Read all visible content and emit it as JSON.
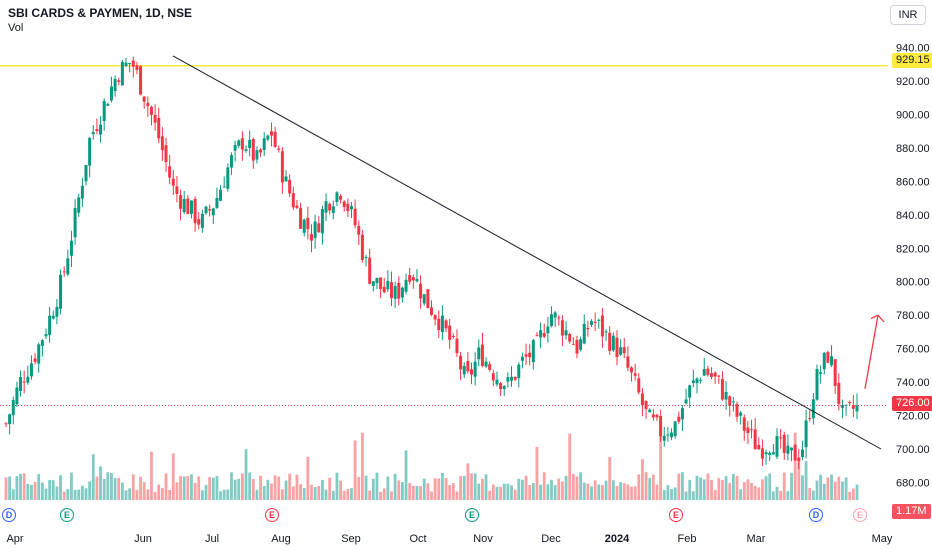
{
  "header": {
    "title": "SBI CARDS & PAYMEN, 1D, NSE",
    "vol_label": "Vol"
  },
  "currency": "INR",
  "price_tags": {
    "horizontal_line": "929.15",
    "last_price": "726.00",
    "volume": "1.17M"
  },
  "events": [
    {
      "kind": "D",
      "month_pos": "Apr"
    },
    {
      "kind": "E",
      "month_pos": "May"
    },
    {
      "kind": "E",
      "month_pos": "Jul"
    },
    {
      "kind": "E",
      "month_pos": "Oct"
    },
    {
      "kind": "E",
      "month_pos": "Jan"
    },
    {
      "kind": "D",
      "month_pos": "Mar"
    },
    {
      "kind": "E",
      "month_pos": "Mar"
    }
  ],
  "chart_data": {
    "type": "candlestick",
    "title": "SBI CARDS & PAYMEN, 1D, NSE",
    "x_tick_labels": [
      "Apr",
      "Jun",
      "Jul",
      "Aug",
      "Sep",
      "Oct",
      "Nov",
      "Dec",
      "2024",
      "Feb",
      "Mar",
      "May"
    ],
    "y_tick_labels": [
      "680.00",
      "700.00",
      "720.00",
      "740.00",
      "760.00",
      "780.00",
      "800.00",
      "820.00",
      "840.00",
      "860.00",
      "880.00",
      "900.00",
      "920.00",
      "940.00"
    ],
    "ylim": [
      670,
      948
    ],
    "price_path": [
      [
        "Apr",
        715
      ],
      [
        "Apr",
        740
      ],
      [
        "Apr",
        755
      ],
      [
        "May",
        775
      ],
      [
        "May",
        800
      ],
      [
        "May",
        840
      ],
      [
        "May",
        885
      ],
      [
        "May",
        905
      ],
      [
        "Jun",
        925
      ],
      [
        "Jun",
        932
      ],
      [
        "Jun",
        910
      ],
      [
        "Jun",
        885
      ],
      [
        "Jun",
        855
      ],
      [
        "Jul",
        845
      ],
      [
        "Jul",
        835
      ],
      [
        "Jul",
        848
      ],
      [
        "Jul",
        870
      ],
      [
        "Aug",
        885
      ],
      [
        "Aug",
        872
      ],
      [
        "Aug",
        890
      ],
      [
        "Aug",
        860
      ],
      [
        "Aug",
        840
      ],
      [
        "Sep",
        828
      ],
      [
        "Sep",
        848
      ],
      [
        "Sep",
        855
      ],
      [
        "Sep",
        835
      ],
      [
        "Sep",
        805
      ],
      [
        "Oct",
        795
      ],
      [
        "Oct",
        792
      ],
      [
        "Oct",
        808
      ],
      [
        "Oct",
        790
      ],
      [
        "Oct",
        778
      ],
      [
        "Nov",
        762
      ],
      [
        "Nov",
        740
      ],
      [
        "Nov",
        758
      ],
      [
        "Nov",
        745
      ],
      [
        "Dec",
        738
      ],
      [
        "Dec",
        752
      ],
      [
        "Dec",
        760
      ],
      [
        "Dec",
        782
      ],
      [
        "Dec",
        772
      ],
      [
        "2024",
        760
      ],
      [
        "2024",
        778
      ],
      [
        "2024",
        768
      ],
      [
        "2024",
        758
      ],
      [
        "2024",
        740
      ],
      [
        "Feb",
        718
      ],
      [
        "Feb",
        710
      ],
      [
        "Feb",
        715
      ],
      [
        "Feb",
        735
      ],
      [
        "Feb",
        748
      ],
      [
        "Mar",
        740
      ],
      [
        "Mar",
        725
      ],
      [
        "Mar",
        712
      ],
      [
        "Mar",
        700
      ],
      [
        "Mar",
        705
      ],
      [
        "Mar",
        695
      ],
      [
        "Mar",
        698
      ],
      [
        "Mar",
        740
      ],
      [
        "Mar",
        758
      ],
      [
        "Mar",
        718
      ],
      [
        "Mar",
        726
      ]
    ],
    "trendline": {
      "from": [
        "Jun",
        935
      ],
      "to": [
        "Mar",
        700
      ]
    },
    "horizontal_line": 929.15,
    "last_price": 726.0,
    "annotation": "up arrow toward 780",
    "volume_last": "1.17M",
    "colors": {
      "up": "#089981",
      "down": "#f23645",
      "vol_up": "#80cbc4",
      "vol_down": "#faa1a4",
      "trendline": "#131722",
      "hline": "#ffeb3b",
      "arrow": "#f23645",
      "grid": "#ffffff"
    }
  }
}
